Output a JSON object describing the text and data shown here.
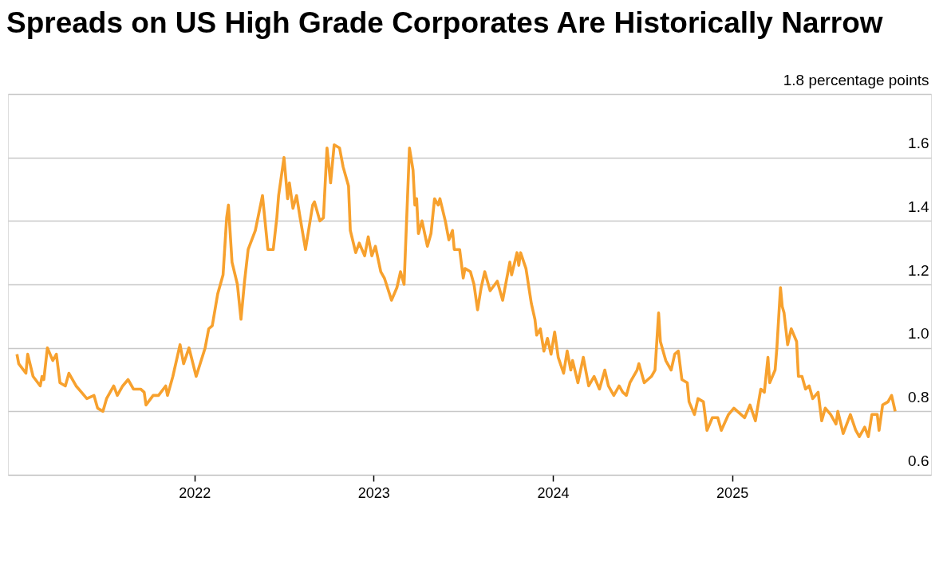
{
  "chart_data": {
    "type": "line",
    "title": "Spreads on US High Grade Corporates Are Historically Narrow",
    "x": [
      2021.01,
      2021.02,
      2021.06,
      2021.07,
      2021.1,
      2021.14,
      2021.15,
      2021.16,
      2021.18,
      2021.21,
      2021.23,
      2021.25,
      2021.28,
      2021.3,
      2021.34,
      2021.37,
      2021.4,
      2021.44,
      2021.46,
      2021.49,
      2021.51,
      2021.55,
      2021.57,
      2021.6,
      2021.63,
      2021.66,
      2021.7,
      2021.72,
      2021.73,
      2021.77,
      2021.8,
      2021.84,
      2021.85,
      2021.88,
      2021.92,
      2021.94,
      2021.97,
      2022.01,
      2022.06,
      2022.08,
      2022.1,
      2022.13,
      2022.16,
      2022.18,
      2022.19,
      2022.21,
      2022.24,
      2022.26,
      2022.28,
      2022.3,
      2022.34,
      2022.38,
      2022.41,
      2022.44,
      2022.46,
      2022.47,
      2022.5,
      2022.52,
      2022.53,
      2022.55,
      2022.57,
      2022.59,
      2022.62,
      2022.64,
      2022.66,
      2022.67,
      2022.7,
      2022.72,
      2022.74,
      2022.76,
      2022.78,
      2022.81,
      2022.83,
      2022.86,
      2022.87,
      2022.9,
      2022.92,
      2022.95,
      2022.97,
      2022.99,
      2023.01,
      2023.04,
      2023.06,
      2023.1,
      2023.13,
      2023.15,
      2023.17,
      2023.2,
      2023.22,
      2023.23,
      2023.24,
      2023.25,
      2023.27,
      2023.3,
      2023.32,
      2023.34,
      2023.36,
      2023.37,
      2023.4,
      2023.42,
      2023.44,
      2023.45,
      2023.48,
      2023.5,
      2023.51,
      2023.54,
      2023.56,
      2023.58,
      2023.6,
      2023.62,
      2023.65,
      2023.69,
      2023.72,
      2023.76,
      2023.77,
      2023.8,
      2023.81,
      2023.82,
      2023.85,
      2023.88,
      2023.9,
      2023.91,
      2023.93,
      2023.95,
      2023.97,
      2023.99,
      2024.01,
      2024.03,
      2024.06,
      2024.08,
      2024.1,
      2024.11,
      2024.14,
      2024.17,
      2024.2,
      2024.23,
      2024.26,
      2024.29,
      2024.31,
      2024.34,
      2024.37,
      2024.39,
      2024.41,
      2024.43,
      2024.47,
      2024.48,
      2024.51,
      2024.55,
      2024.57,
      2024.59,
      2024.6,
      2024.63,
      2024.66,
      2024.68,
      2024.7,
      2024.72,
      2024.75,
      2024.76,
      2024.79,
      2024.81,
      2024.84,
      2024.86,
      2024.89,
      2024.92,
      2024.94,
      2024.98,
      2025.01,
      2025.07,
      2025.1,
      2025.13,
      2025.16,
      2025.18,
      2025.2,
      2025.21,
      2025.24,
      2025.25,
      2025.27,
      2025.28,
      2025.29,
      2025.31,
      2025.33,
      2025.36,
      2025.37,
      2025.39,
      2025.41,
      2025.43,
      2025.45,
      2025.48,
      2025.5,
      2025.52,
      2025.55,
      2025.58,
      2025.59,
      2025.62,
      2025.66,
      2025.69,
      2025.71,
      2025.74,
      2025.76,
      2025.78,
      2025.81,
      2025.82,
      2025.84,
      2025.87,
      2025.89,
      2025.91
    ],
    "series": [
      {
        "color": "#f7a12e",
        "values": [
          0.98,
          0.95,
          0.92,
          0.98,
          0.91,
          0.88,
          0.91,
          0.9,
          1.0,
          0.96,
          0.98,
          0.89,
          0.88,
          0.92,
          0.88,
          0.86,
          0.84,
          0.85,
          0.81,
          0.8,
          0.84,
          0.88,
          0.85,
          0.88,
          0.9,
          0.87,
          0.87,
          0.86,
          0.82,
          0.85,
          0.85,
          0.88,
          0.85,
          0.91,
          1.01,
          0.95,
          1.0,
          0.91,
          1.0,
          1.06,
          1.07,
          1.17,
          1.23,
          1.41,
          1.45,
          1.27,
          1.2,
          1.09,
          1.21,
          1.31,
          1.37,
          1.48,
          1.31,
          1.31,
          1.41,
          1.48,
          1.6,
          1.47,
          1.52,
          1.44,
          1.48,
          1.41,
          1.31,
          1.38,
          1.45,
          1.46,
          1.4,
          1.41,
          1.63,
          1.52,
          1.64,
          1.63,
          1.57,
          1.51,
          1.37,
          1.3,
          1.33,
          1.29,
          1.35,
          1.29,
          1.32,
          1.24,
          1.22,
          1.15,
          1.19,
          1.24,
          1.2,
          1.63,
          1.56,
          1.45,
          1.47,
          1.36,
          1.4,
          1.32,
          1.36,
          1.47,
          1.45,
          1.47,
          1.4,
          1.34,
          1.37,
          1.31,
          1.31,
          1.22,
          1.25,
          1.24,
          1.2,
          1.12,
          1.19,
          1.24,
          1.18,
          1.21,
          1.15,
          1.27,
          1.23,
          1.3,
          1.26,
          1.3,
          1.25,
          1.14,
          1.09,
          1.04,
          1.06,
          0.99,
          1.03,
          0.98,
          1.05,
          0.97,
          0.92,
          0.99,
          0.93,
          0.96,
          0.89,
          0.97,
          0.88,
          0.91,
          0.87,
          0.93,
          0.88,
          0.85,
          0.88,
          0.86,
          0.85,
          0.89,
          0.93,
          0.95,
          0.89,
          0.91,
          0.93,
          1.11,
          1.02,
          0.96,
          0.93,
          0.98,
          0.99,
          0.9,
          0.89,
          0.83,
          0.79,
          0.84,
          0.83,
          0.74,
          0.78,
          0.78,
          0.74,
          0.79,
          0.81,
          0.78,
          0.82,
          0.77,
          0.87,
          0.86,
          0.97,
          0.89,
          0.93,
          1.0,
          1.19,
          1.13,
          1.11,
          1.01,
          1.06,
          1.02,
          0.91,
          0.91,
          0.87,
          0.88,
          0.84,
          0.86,
          0.77,
          0.81,
          0.79,
          0.76,
          0.8,
          0.73,
          0.79,
          0.74,
          0.72,
          0.75,
          0.72,
          0.79,
          0.79,
          0.74,
          0.82,
          0.83,
          0.85,
          0.8
        ]
      }
    ],
    "xlim": [
      2020.96,
      2026.11
    ],
    "xticks": [
      2022,
      2023,
      2024,
      2025
    ],
    "ylim": [
      0.6,
      1.8
    ],
    "yticks": [
      0.6,
      0.8,
      {
        "value": 1.0,
        "label": "1.0"
      },
      1.2,
      1.4,
      1.6,
      {
        "value": 1.8,
        "label": "1.8 percentage points"
      }
    ],
    "grid": "y",
    "marker": "none",
    "line_style": "solid"
  }
}
